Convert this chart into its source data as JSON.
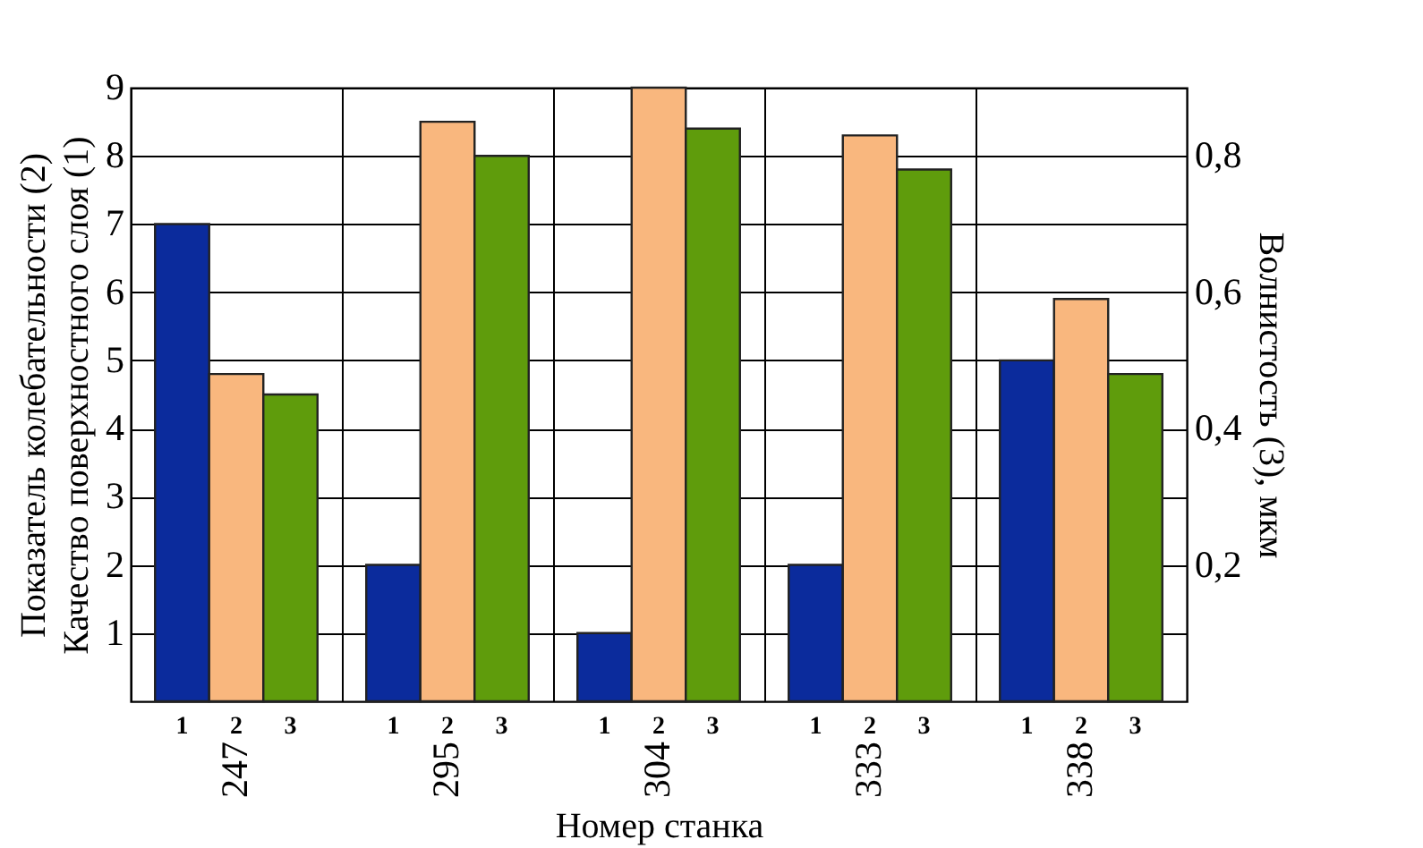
{
  "chart_data": {
    "type": "bar",
    "xlabel": "Номер станка",
    "ylabel": "Показатель колебательности (2)\nКачество поверхностного слоя (1)",
    "y2label": "Волнистость (3), мкм",
    "categories": [
      "247",
      "295",
      "304",
      "333",
      "338"
    ],
    "series": [
      {
        "name": "1",
        "color": "#0b2b9c",
        "values": [
          7,
          2,
          1,
          2,
          5
        ]
      },
      {
        "name": "2",
        "color": "#f9b77e",
        "values": [
          4.8,
          8.5,
          9,
          8.3,
          5.9
        ]
      },
      {
        "name": "3",
        "color": "#5f9c0c",
        "axis": "y2",
        "values": [
          0.45,
          0.8,
          0.84,
          0.78,
          0.48
        ]
      }
    ],
    "ylim": [
      0,
      9
    ],
    "yticks": [
      1,
      2,
      3,
      4,
      5,
      6,
      7,
      8,
      9
    ],
    "y2lim": [
      0,
      0.9
    ],
    "y2ticks": [
      {
        "value": 0.2,
        "label": "0,2"
      },
      {
        "value": 0.4,
        "label": "0,4"
      },
      {
        "value": 0.6,
        "label": "0,6"
      },
      {
        "value": 0.8,
        "label": "0,8"
      }
    ],
    "grid": true
  }
}
